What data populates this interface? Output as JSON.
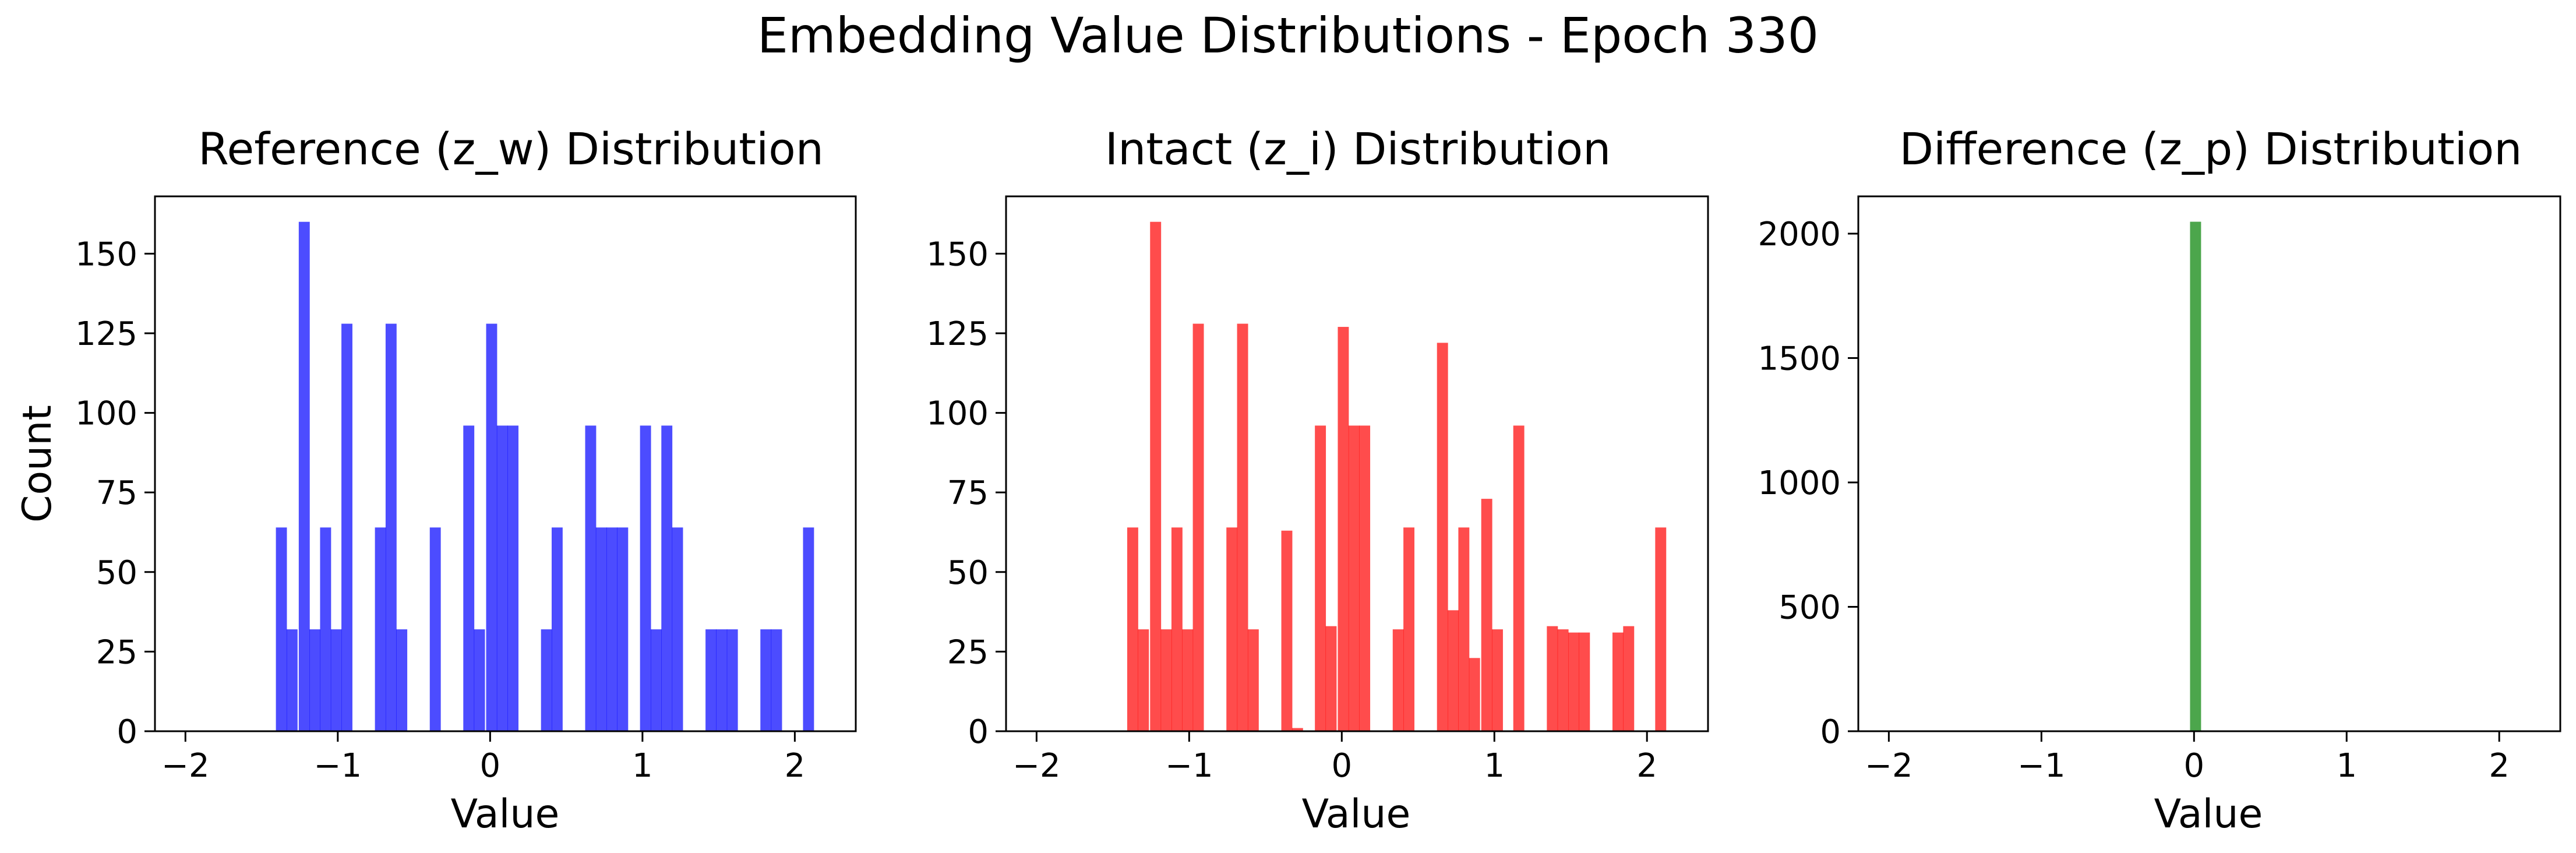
{
  "figure": {
    "title": "Embedding Value Distributions - Epoch 330"
  },
  "chart_data": [
    {
      "type": "bar",
      "title": "Reference (z_w) Distribution",
      "xlabel": "Value",
      "ylabel": "Count",
      "color": "#0000ff",
      "bin_width": 0.0722,
      "xlim": [
        -2.2,
        2.4
      ],
      "ylim": [
        0,
        168
      ],
      "xticks": [
        -2,
        -1,
        0,
        1,
        2
      ],
      "xtick_labels": [
        "−2",
        "−1",
        "0",
        "1",
        "2"
      ],
      "yticks": [
        0,
        25,
        50,
        75,
        100,
        125,
        150
      ],
      "ytick_labels": [
        "0",
        "25",
        "50",
        "75",
        "100",
        "125",
        "150"
      ],
      "bins": [
        {
          "x": -1.37,
          "count": 64
        },
        {
          "x": -1.3,
          "count": 32
        },
        {
          "x": -1.22,
          "count": 160
        },
        {
          "x": -1.15,
          "count": 32
        },
        {
          "x": -1.08,
          "count": 64
        },
        {
          "x": -1.01,
          "count": 32
        },
        {
          "x": -0.94,
          "count": 128
        },
        {
          "x": -0.72,
          "count": 64
        },
        {
          "x": -0.65,
          "count": 128
        },
        {
          "x": -0.58,
          "count": 32
        },
        {
          "x": -0.36,
          "count": 64
        },
        {
          "x": -0.14,
          "count": 96
        },
        {
          "x": -0.07,
          "count": 32
        },
        {
          "x": 0.01,
          "count": 128
        },
        {
          "x": 0.08,
          "count": 96
        },
        {
          "x": 0.15,
          "count": 96
        },
        {
          "x": 0.37,
          "count": 32
        },
        {
          "x": 0.44,
          "count": 64
        },
        {
          "x": 0.66,
          "count": 96
        },
        {
          "x": 0.73,
          "count": 64
        },
        {
          "x": 0.8,
          "count": 64
        },
        {
          "x": 0.87,
          "count": 64
        },
        {
          "x": 1.02,
          "count": 96
        },
        {
          "x": 1.09,
          "count": 32
        },
        {
          "x": 1.16,
          "count": 96
        },
        {
          "x": 1.23,
          "count": 64
        },
        {
          "x": 1.45,
          "count": 32
        },
        {
          "x": 1.52,
          "count": 32
        },
        {
          "x": 1.59,
          "count": 32
        },
        {
          "x": 1.81,
          "count": 32
        },
        {
          "x": 1.88,
          "count": 32
        },
        {
          "x": 2.09,
          "count": 64
        }
      ]
    },
    {
      "type": "bar",
      "title": "Intact (z_i) Distribution",
      "xlabel": "Value",
      "ylabel": "",
      "color": "#ff0000",
      "bin_width": 0.0722,
      "xlim": [
        -2.2,
        2.4
      ],
      "ylim": [
        0,
        168
      ],
      "xticks": [
        -2,
        -1,
        0,
        1,
        2
      ],
      "xtick_labels": [
        "−2",
        "−1",
        "0",
        "1",
        "2"
      ],
      "yticks": [
        0,
        25,
        50,
        75,
        100,
        125,
        150
      ],
      "ytick_labels": [
        "0",
        "25",
        "50",
        "75",
        "100",
        "125",
        "150"
      ],
      "bins": [
        {
          "x": -1.37,
          "count": 64
        },
        {
          "x": -1.3,
          "count": 32
        },
        {
          "x": -1.22,
          "count": 160
        },
        {
          "x": -1.15,
          "count": 32
        },
        {
          "x": -1.08,
          "count": 64
        },
        {
          "x": -1.01,
          "count": 32
        },
        {
          "x": -0.94,
          "count": 128
        },
        {
          "x": -0.72,
          "count": 64
        },
        {
          "x": -0.65,
          "count": 128
        },
        {
          "x": -0.58,
          "count": 32
        },
        {
          "x": -0.36,
          "count": 63
        },
        {
          "x": -0.29,
          "count": 1
        },
        {
          "x": -0.14,
          "count": 96
        },
        {
          "x": -0.07,
          "count": 33
        },
        {
          "x": 0.01,
          "count": 127
        },
        {
          "x": 0.08,
          "count": 96
        },
        {
          "x": 0.15,
          "count": 96
        },
        {
          "x": 0.37,
          "count": 32
        },
        {
          "x": 0.44,
          "count": 64
        },
        {
          "x": 0.66,
          "count": 122
        },
        {
          "x": 0.73,
          "count": 38
        },
        {
          "x": 0.8,
          "count": 64
        },
        {
          "x": 0.87,
          "count": 23
        },
        {
          "x": 0.95,
          "count": 73
        },
        {
          "x": 1.02,
          "count": 32
        },
        {
          "x": 1.16,
          "count": 96
        },
        {
          "x": 1.38,
          "count": 33
        },
        {
          "x": 1.45,
          "count": 32
        },
        {
          "x": 1.52,
          "count": 31
        },
        {
          "x": 1.59,
          "count": 31
        },
        {
          "x": 1.81,
          "count": 31
        },
        {
          "x": 1.88,
          "count": 33
        },
        {
          "x": 2.09,
          "count": 64
        }
      ]
    },
    {
      "type": "bar",
      "title": "Difference (z_p) Distribution",
      "xlabel": "Value",
      "ylabel": "",
      "color": "#008000",
      "bin_width": 0.0722,
      "xlim": [
        -2.2,
        2.4
      ],
      "ylim": [
        0,
        2150
      ],
      "xticks": [
        -2,
        -1,
        0,
        1,
        2
      ],
      "xtick_labels": [
        "−2",
        "−1",
        "0",
        "1",
        "2"
      ],
      "yticks": [
        0,
        500,
        1000,
        1500,
        2000
      ],
      "ytick_labels": [
        "0",
        "500",
        "1000",
        "1500",
        "2000"
      ],
      "bins": [
        {
          "x": 0.01,
          "count": 2048
        }
      ]
    }
  ]
}
